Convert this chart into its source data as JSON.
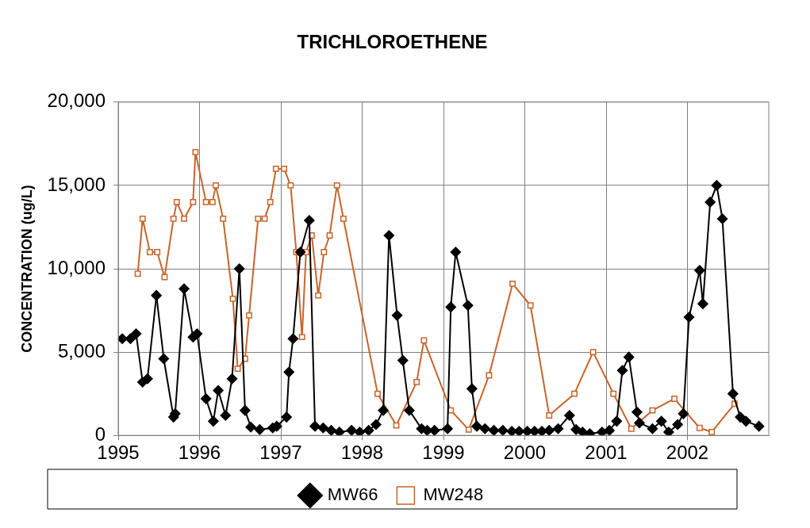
{
  "chart_data": {
    "type": "line",
    "title": "TRICHLOROETHENE",
    "ylabel": "CONCENTRATION (ug/L)",
    "xlim": [
      1995,
      2003
    ],
    "xticks": [
      1995,
      1996,
      1997,
      1998,
      1999,
      2000,
      2001,
      2002
    ],
    "ylim": [
      0,
      20000
    ],
    "yticks": [
      {
        "value": 0,
        "label": "0"
      },
      {
        "value": 5000,
        "label": "5,000"
      },
      {
        "value": 10000,
        "label": "10,000"
      },
      {
        "value": 15000,
        "label": "15,000"
      },
      {
        "value": 20000,
        "label": "20,000"
      }
    ],
    "grid": true,
    "legend": "bottom",
    "line_style": "solid",
    "series": [
      {
        "name": "MW66",
        "color": "#000000",
        "marker": "diamond",
        "x": [
          1995.05,
          1995.15,
          1995.22,
          1995.3,
          1995.36,
          1995.47,
          1995.56,
          1995.68,
          1995.7,
          1995.81,
          1995.92,
          1995.97,
          1996.08,
          1996.17,
          1996.23,
          1996.32,
          1996.4,
          1996.49,
          1996.56,
          1996.63,
          1996.74,
          1996.9,
          1996.95,
          1997.07,
          1997.1,
          1997.15,
          1997.24,
          1997.35,
          1997.42,
          1997.52,
          1997.62,
          1997.72,
          1997.87,
          1997.97,
          1998.08,
          1998.17,
          1998.26,
          1998.33,
          1998.43,
          1998.5,
          1998.58,
          1998.73,
          1998.8,
          1998.89,
          1999.05,
          1999.09,
          1999.15,
          1999.3,
          1999.35,
          1999.41,
          1999.51,
          1999.62,
          1999.73,
          1999.84,
          1999.93,
          2000.03,
          2000.12,
          2000.21,
          2000.3,
          2000.41,
          2000.55,
          2000.63,
          2000.71,
          2000.8,
          2000.95,
          2001.04,
          2001.13,
          2001.2,
          2001.28,
          2001.38,
          2001.41,
          2001.57,
          2001.68,
          2001.77,
          2001.88,
          2001.95,
          2002.02,
          2002.15,
          2002.19,
          2002.28,
          2002.36,
          2002.43,
          2002.56,
          2002.65,
          2002.72,
          2002.88
        ],
        "values": [
          5800,
          5800,
          6100,
          3200,
          3400,
          8400,
          4600,
          1100,
          1300,
          8800,
          5900,
          6100,
          2200,
          850,
          2700,
          1200,
          3400,
          10000,
          1500,
          500,
          350,
          450,
          550,
          1100,
          3800,
          5800,
          11000,
          12900,
          550,
          450,
          300,
          200,
          300,
          200,
          300,
          650,
          1500,
          12000,
          7200,
          4500,
          1500,
          400,
          300,
          300,
          400,
          7700,
          11000,
          7800,
          2800,
          550,
          400,
          300,
          300,
          250,
          250,
          250,
          250,
          250,
          300,
          400,
          1200,
          350,
          200,
          100,
          200,
          300,
          850,
          3900,
          4700,
          1400,
          750,
          400,
          850,
          200,
          650,
          1300,
          7100,
          9900,
          7900,
          14000,
          15000,
          13000,
          2500,
          1100,
          850,
          550
        ]
      },
      {
        "name": "MW248",
        "color": "#c8642a",
        "marker": "square",
        "x": [
          1995.24,
          1995.3,
          1995.39,
          1995.48,
          1995.57,
          1995.68,
          1995.72,
          1995.81,
          1995.92,
          1995.95,
          1996.08,
          1996.16,
          1996.2,
          1996.29,
          1996.41,
          1996.47,
          1996.56,
          1996.61,
          1996.72,
          1996.8,
          1996.87,
          1996.94,
          1997.04,
          1997.12,
          1997.19,
          1997.26,
          1997.31,
          1997.38,
          1997.46,
          1997.53,
          1997.6,
          1997.69,
          1997.77,
          1998.19,
          1998.42,
          1998.67,
          1998.76,
          1999.09,
          1999.31,
          1999.56,
          1999.85,
          2000.07,
          2000.3,
          2000.61,
          2000.84,
          2001.09,
          2001.31,
          2001.57,
          2001.84,
          2002.15,
          2002.3,
          2002.58
        ],
        "values": [
          9700,
          13000,
          11000,
          11000,
          9500,
          13000,
          14000,
          13000,
          14000,
          17000,
          14000,
          14000,
          15000,
          13000,
          8200,
          4000,
          4600,
          7200,
          13000,
          13000,
          14000,
          16000,
          16000,
          15000,
          11000,
          5900,
          11000,
          12000,
          8400,
          11000,
          12000,
          15000,
          13000,
          2500,
          600,
          3200,
          5700,
          1500,
          350,
          3600,
          9100,
          7800,
          1200,
          2500,
          5000,
          2500,
          400,
          1500,
          2200,
          450,
          200,
          1900
        ]
      }
    ]
  }
}
